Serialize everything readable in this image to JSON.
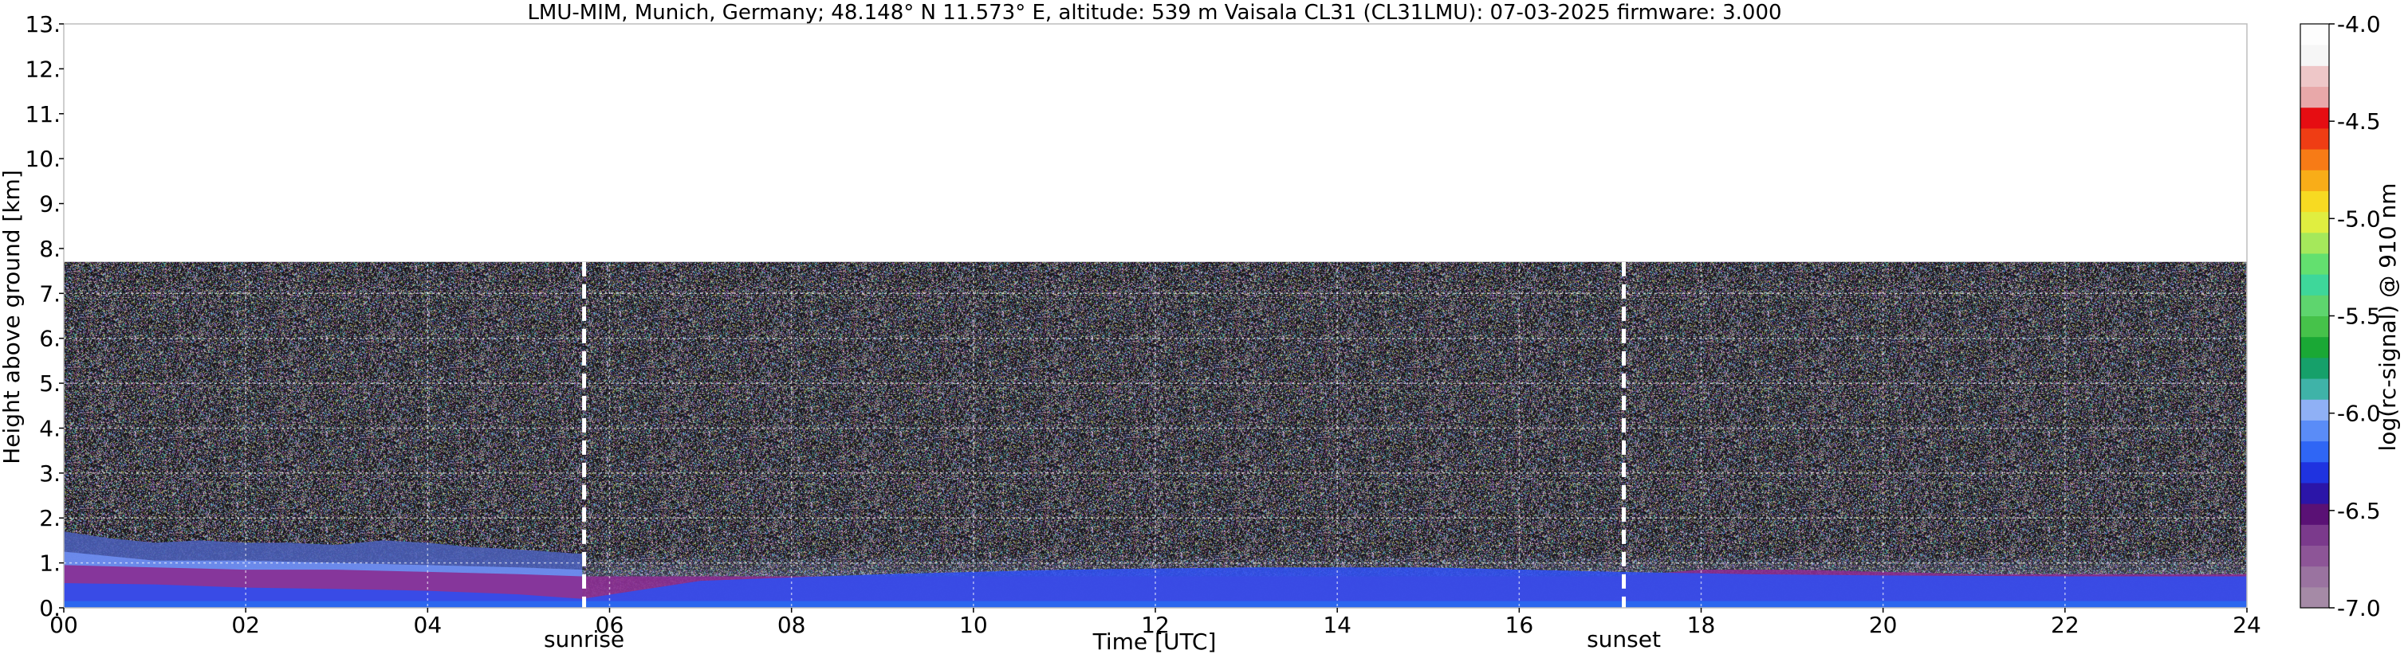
{
  "chart_data": {
    "type": "heatmap",
    "title": "LMU-MIM, Munich, Germany; 48.148° N 11.573° E, altitude: 539 m    Vaisala CL31 (CL31LMU): 07-03-2025    firmware: 3.000",
    "xlabel": "Time [UTC]",
    "ylabel": "Height above ground [km]",
    "xlim": [
      0,
      24
    ],
    "ylim": [
      0,
      13
    ],
    "x_ticks": [
      "00",
      "02",
      "04",
      "06",
      "08",
      "10",
      "12",
      "14",
      "16",
      "18",
      "20",
      "22",
      "24"
    ],
    "x_tick_values": [
      0,
      2,
      4,
      6,
      8,
      10,
      12,
      14,
      16,
      18,
      20,
      22,
      24
    ],
    "y_ticks": [
      "0.",
      "1.",
      "2.",
      "3.",
      "4.",
      "5.",
      "6.",
      "7.",
      "8.",
      "9.",
      "10.",
      "11.",
      "12.",
      "13."
    ],
    "y_tick_values": [
      0,
      1,
      2,
      3,
      4,
      5,
      6,
      7,
      8,
      9,
      10,
      11,
      12,
      13
    ],
    "grid": true,
    "data_top_km": 7.7,
    "colorbar": {
      "label": "log(rc-signal) @ 910 nm",
      "range": [
        -7.0,
        -4.0
      ],
      "ticks": [
        "-4.0",
        "-4.5",
        "-5.0",
        "-5.5",
        "-6.0",
        "-6.5",
        "-7.0"
      ],
      "tick_values": [
        -4.0,
        -4.5,
        -5.0,
        -5.5,
        -6.0,
        -6.5,
        -7.0
      ],
      "colors": [
        "#a58aa6",
        "#9a73a0",
        "#8d5597",
        "#7b3a8c",
        "#5a1175",
        "#2b15a8",
        "#1f33e0",
        "#2f66f5",
        "#5a8cf7",
        "#8fb0f5",
        "#3fb3a8",
        "#16a06a",
        "#1aa835",
        "#46c24a",
        "#5ed56e",
        "#3ed79a",
        "#63e06f",
        "#a5e85b",
        "#e0ee40",
        "#f7da22",
        "#f9ad18",
        "#f77b16",
        "#ef3d14",
        "#e60d12",
        "#e8a8a9",
        "#eec7c8",
        "#f6f6f6",
        "#fdfdfd"
      ]
    },
    "annotations": [
      {
        "label": "sunrise",
        "x": 5.72
      },
      {
        "label": "sunset",
        "x": 17.15
      }
    ],
    "layers": [
      {
        "x": [
          0,
          1,
          2,
          3,
          4,
          5,
          5.7,
          7,
          9,
          11,
          13,
          15,
          17.1,
          18.5,
          20,
          22,
          24
        ],
        "top": [
          0.55,
          0.52,
          0.45,
          0.42,
          0.38,
          0.3,
          0.2,
          0.6,
          0.75,
          0.85,
          0.9,
          0.9,
          0.8,
          0.75,
          0.72,
          0.7,
          0.7
        ],
        "color": "#2f4ff0"
      },
      {
        "x": [
          0,
          1,
          2,
          3,
          4,
          5,
          5.7,
          17.1,
          18,
          19,
          20,
          21,
          22,
          23,
          24
        ],
        "top": [
          0.95,
          0.9,
          0.85,
          0.85,
          0.8,
          0.75,
          0.7,
          0.7,
          0.85,
          0.85,
          0.8,
          0.75,
          0.75,
          0.75,
          0.75
        ],
        "color": "#8a2a8f"
      },
      {
        "x": [
          0,
          1,
          2,
          3,
          4,
          5,
          5.7
        ],
        "top": [
          1.25,
          1.05,
          1.05,
          1.0,
          0.95,
          0.9,
          0.85
        ],
        "color": "#6f8ff2"
      },
      {
        "x": [
          0,
          0.5,
          1,
          1.5,
          2,
          2.5,
          3,
          3.5,
          4,
          4.5,
          5,
          5.7
        ],
        "top": [
          1.7,
          1.55,
          1.45,
          1.5,
          1.45,
          1.45,
          1.4,
          1.5,
          1.45,
          1.35,
          1.3,
          1.2
        ],
        "color": "#4a5fb8"
      }
    ]
  }
}
